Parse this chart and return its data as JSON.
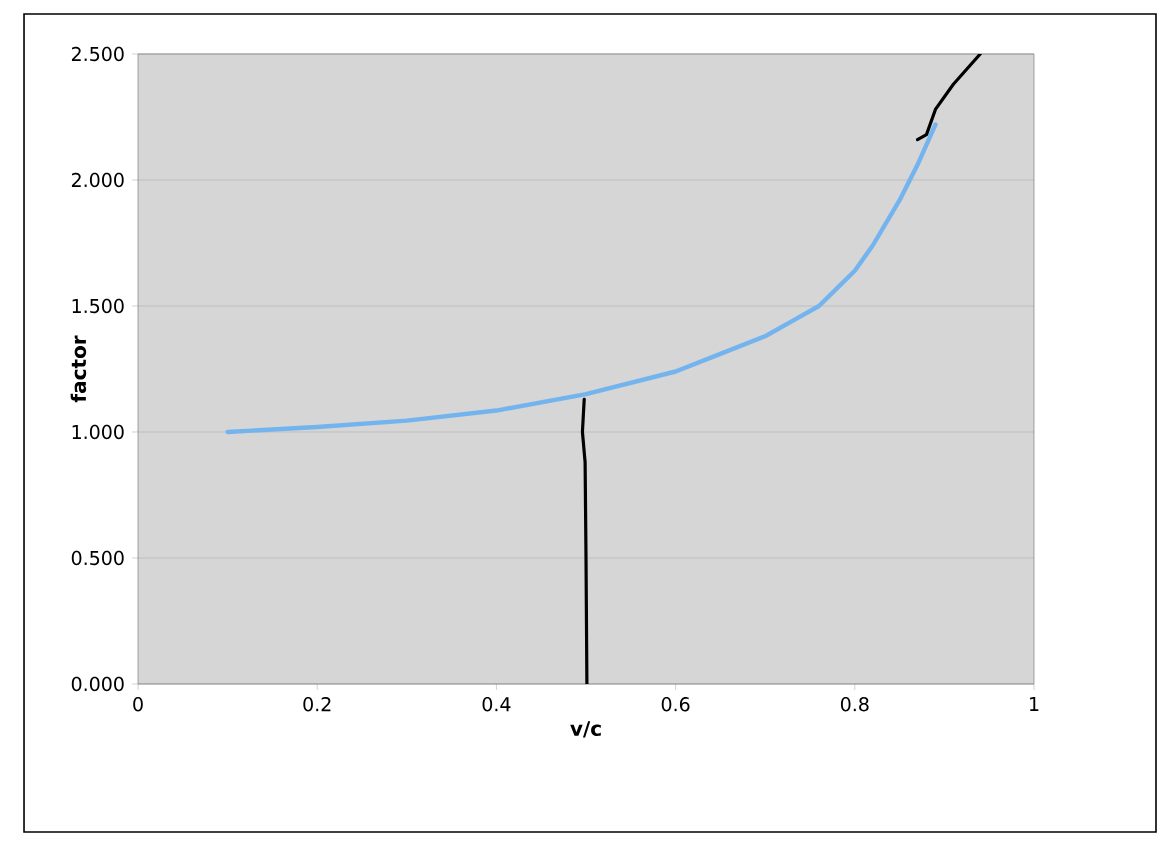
{
  "chart_data": {
    "type": "line",
    "xlabel": "v/c",
    "ylabel": "factor",
    "xlim": [
      0,
      1
    ],
    "ylim": [
      0,
      2.5
    ],
    "xticks": [
      0,
      0.2,
      0.4,
      0.6,
      0.8,
      1
    ],
    "yticks": [
      {
        "value": 0,
        "label": "0.000"
      },
      {
        "value": 0.5,
        "label": "0.500"
      },
      {
        "value": 1,
        "label": "1.000"
      },
      {
        "value": 1.5,
        "label": "1.500"
      },
      {
        "value": 2,
        "label": "2.000"
      },
      {
        "value": 2.5,
        "label": "2.500"
      }
    ],
    "grid": "y",
    "marker": "none",
    "line_style": "solid",
    "series": [
      {
        "color": "#74b4ee",
        "x": [
          0.1,
          0.2,
          0.3,
          0.4,
          0.5,
          0.6,
          0.65,
          0.7,
          0.73,
          0.76,
          0.78,
          0.8,
          0.82,
          0.85,
          0.87,
          0.89
        ],
        "values": [
          1.0,
          1.02,
          1.045,
          1.085,
          1.15,
          1.24,
          1.31,
          1.38,
          1.44,
          1.5,
          1.57,
          1.64,
          1.74,
          1.92,
          2.06,
          2.22
        ]
      },
      {
        "color": "#000000",
        "x": [
          0.498,
          0.496,
          0.499,
          0.5,
          0.501
        ],
        "values": [
          1.13,
          1.0,
          0.88,
          0.5,
          0.0
        ]
      },
      {
        "color": "#000000",
        "x": [
          0.87,
          0.88,
          0.89,
          0.91,
          0.94
        ],
        "values": [
          2.16,
          2.18,
          2.28,
          2.38,
          2.5
        ]
      }
    ]
  }
}
